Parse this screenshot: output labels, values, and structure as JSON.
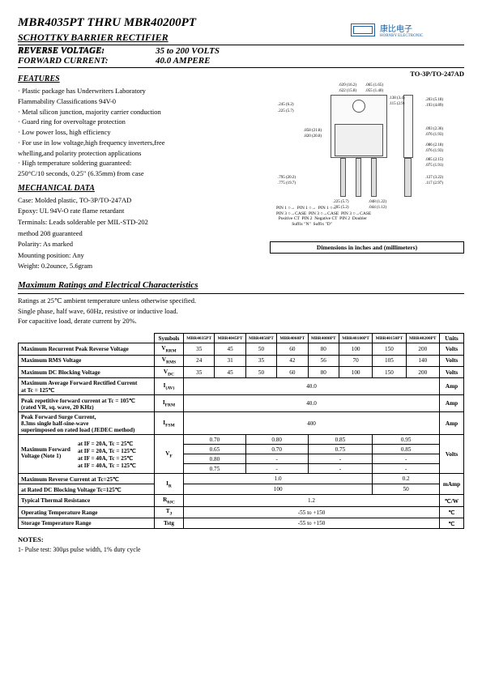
{
  "header": {
    "title": "MBR4035PT THRU MBR40200PT",
    "subtitle": "SCHOTTKY BARRIER RECTIFIER",
    "rv_label": "REVERSE VOLTAGE:",
    "rv_value": "35 to 200 VOLTS",
    "fc_label": "FORWARD CURRENT:",
    "fc_value": "40.0 AMPERE"
  },
  "logo": {
    "chinese": "康比电子",
    "english": "HORNBY ELECTRONIC"
  },
  "features": {
    "heading": "FEATURES",
    "items": [
      "· Plastic package has Underwriters Laboratory",
      "  Flammability Classifications 94V-0",
      "· Metal silicon junction, majority carrier conduction",
      "· Guard ring for overvoltage protection",
      "· Low power loss, high efficiency",
      "· For use in low voltage,high frequency inverters,free",
      "  whelling,and polarity protection applications",
      "· High temperature soldering guaranteed:",
      "  250°C/10 seconds, 0.25\" (6.35mm) from case"
    ]
  },
  "mechanical": {
    "heading": "MECHANICAL DATA",
    "lines": [
      "Case: Molded plastic, TO-3P/TO-247AD",
      "Epoxy: UL 94V-O rate flame retardant",
      "Terminals: Leads solderable per MIL-STD-202",
      "method 208 guaranteed",
      "Polarity: As marked",
      "Mounting position: Any",
      "Weight: 0.2ounce, 5.6gram"
    ]
  },
  "package": {
    "label": "TO-3P/TO-247AD",
    "dim_note": "Dimensions in inches and (millimeters)",
    "dims": [
      ".245 (6.2)",
      ".225 (5.7)",
      ".639 (16.2)",
      ".622 (15.8)",
      ".065 (1.65)",
      ".055 (1.40)",
      ".138 (3.4)",
      ".115 (2.9)",
      ".203 (5.18)",
      ".193 (4.89)",
      ".858 (21.8)",
      ".820 (20.8)",
      ".093 (2.36)",
      ".076 (1.93)",
      ".086 (2.18)",
      ".076 (1.93)",
      ".085 (2.15)",
      ".075 (1.91)",
      ".795 (20.2)",
      ".775 (19.7)",
      ".127 (3.22)",
      ".117 (2.97)",
      ".225 (5.7)",
      ".205 (5.2)",
      ".048 (1.22)",
      ".044 (1.12)"
    ],
    "pins": "PIN 1 ○→  PIN 1 ○→  PIN 1 ○→\nPIN 3 ○→CASE  PIN 3 ○→CASE  PIN 3 ○→CASE\n  Positive CT  PIN 2  Negative CT  PIN 2  Doubler\n              Suffix \"N\"  Suffix \"D\""
  },
  "maxratings": {
    "heading": "Maximum Ratings and Electrical Characteristics",
    "intro": [
      "Ratings at 25℃ ambient temperature unless otherwise specified.",
      "Single phase, half wave, 60Hz, resistive or inductive load.",
      "For capacitive load, derate current by 20%."
    ]
  },
  "table": {
    "sym_h": "Symbols",
    "units_h": "Units",
    "parts": [
      "MBR4035PT",
      "MBR4045PT",
      "MBR4050PT",
      "MBR4060PT",
      "MBR4080PT",
      "MBR40100PT",
      "MBR40150PT",
      "MBR40200PT"
    ],
    "rows": [
      {
        "p": "Maximum Recurrent Peak Reverse Voltage",
        "s": "V",
        "sub": "RRM",
        "v": [
          "35",
          "45",
          "50",
          "60",
          "80",
          "100",
          "150",
          "200"
        ],
        "u": "Volts"
      },
      {
        "p": "Maximum RMS Voltage",
        "s": "V",
        "sub": "RMS",
        "v": [
          "24",
          "31",
          "35",
          "42",
          "56",
          "70",
          "105",
          "140"
        ],
        "u": "Volts"
      },
      {
        "p": "Maximum DC Blocking Voltage",
        "s": "V",
        "sub": "DC",
        "v": [
          "35",
          "45",
          "50",
          "60",
          "80",
          "100",
          "150",
          "200"
        ],
        "u": "Volts"
      }
    ],
    "iav": {
      "p1": "Maximum Average Forward Rectified Current",
      "p2": "at Tc = 125℃",
      "s": "I",
      "sub": "(AV)",
      "v": "40.0",
      "u": "Amp"
    },
    "ifrm": {
      "p1": "Peak repetitive forward current at Tc = 105℃",
      "p2": "(rated VR, sq. wave, 20 KHz)",
      "s": "I",
      "sub": "FRM",
      "v": "40.0",
      "u": "Amp"
    },
    "ifsm": {
      "p1": "Peak Forward Surge Current,",
      "p2": "8.3ms single half-sine-wave",
      "p3": "superimposed on rated load (JEDEC method)",
      "s": "I",
      "sub": "FSM",
      "v": "400",
      "u": "Amp"
    },
    "vf": {
      "p": "Maximum Forward Voltage (Note 1)",
      "conds": [
        "at IF = 20A, Tc = 25℃",
        "at IF = 20A, Tc = 125℃",
        "at IF = 40A, Tc = 25℃",
        "at IF = 40A, Tc = 125℃"
      ],
      "s": "V",
      "sub": "F",
      "groups": [
        [
          "0.70",
          "0.65",
          "0.80",
          "0.75"
        ],
        [
          "0.80",
          "0.70",
          "-",
          "-"
        ],
        [
          "0.85",
          "0.75",
          "-",
          "-"
        ],
        [
          "0.95",
          "0.85",
          "-",
          "-"
        ]
      ],
      "u": "Volts"
    },
    "ir": {
      "p1": "Maximum Reverse Current       at Tc=25℃",
      "p2": "at Rated DC Blocking Voltage       Tc=125℃",
      "s": "I",
      "sub": "R",
      "v1a": "1.0",
      "v1b": "0.2",
      "v2a": "100",
      "v2b": "50",
      "u": "mAmp"
    },
    "rth": {
      "p": "Typical Thermal Resistance",
      "s": "R",
      "sub": "θJC",
      "v": "1.2",
      "u": "℃/W"
    },
    "tj": {
      "p": "Operating Temperature Range",
      "s": "T",
      "sub": "J",
      "v": "-55 to +150",
      "u": "℃"
    },
    "tstg": {
      "p": "Storage Temperature Range",
      "s": "Tstg",
      "v": "-55 to +150",
      "u": "℃"
    }
  },
  "notes": {
    "h": "NOTES:",
    "t": "1- Pulse test: 300μs pulse width, 1% duty cycle"
  }
}
